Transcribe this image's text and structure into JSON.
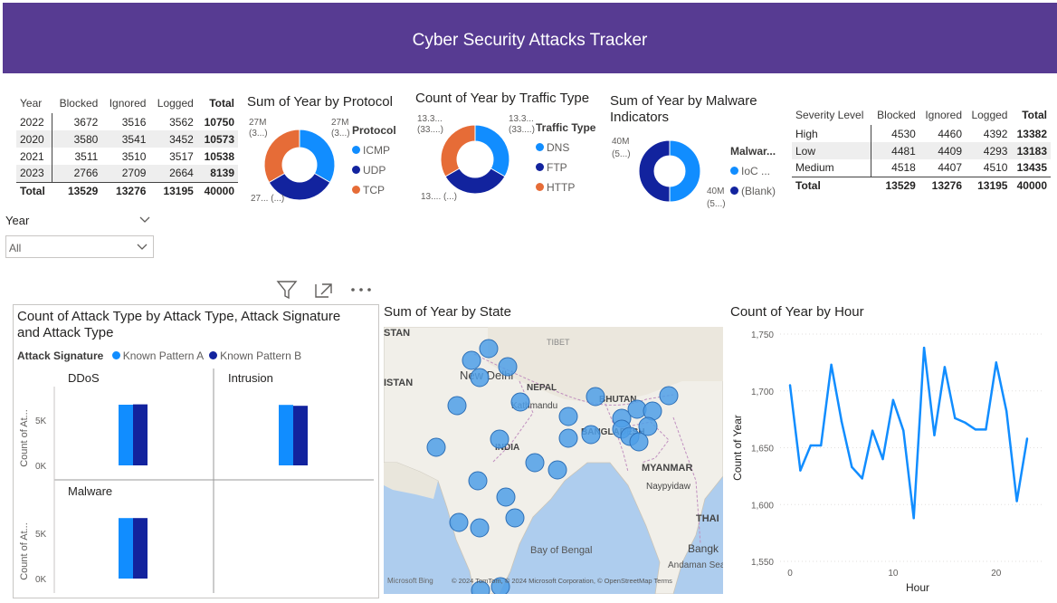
{
  "header": {
    "title": "Cyber Security Attacks Tracker"
  },
  "year_table": {
    "columns": [
      "Year",
      "Blocked",
      "Ignored",
      "Logged",
      "Total"
    ],
    "rows": [
      [
        "2022",
        "3672",
        "3516",
        "3562",
        "10750"
      ],
      [
        "2020",
        "3580",
        "3541",
        "3452",
        "10573"
      ],
      [
        "2021",
        "3511",
        "3510",
        "3517",
        "10538"
      ],
      [
        "2023",
        "2766",
        "2709",
        "2664",
        "8139"
      ]
    ],
    "total": [
      "Total",
      "13529",
      "13276",
      "13195",
      "40000"
    ]
  },
  "severity_table": {
    "columns": [
      "Severity Level",
      "Blocked",
      "Ignored",
      "Logged",
      "Total"
    ],
    "rows": [
      [
        "High",
        "4530",
        "4460",
        "4392",
        "13382"
      ],
      [
        "Low",
        "4481",
        "4409",
        "4293",
        "13183"
      ],
      [
        "Medium",
        "4518",
        "4407",
        "4510",
        "13435"
      ]
    ],
    "total": [
      "Total",
      "13529",
      "13276",
      "13195",
      "40000"
    ]
  },
  "slicer": {
    "label": "Year",
    "value": "All"
  },
  "protocol_donut": {
    "title": "Sum of Year by Protocol",
    "legend_title": "Protocol",
    "labels": {
      "top_left": "27M\n(3...)",
      "top_right": "27M\n(3...)",
      "bottom": "27... (...)"
    },
    "items": [
      {
        "name": "ICMP",
        "color": "#118dff"
      },
      {
        "name": "UDP",
        "color": "#12239e"
      },
      {
        "name": "TCP",
        "color": "#e66c37"
      }
    ]
  },
  "traffic_donut": {
    "title": "Count of Year by Traffic Type",
    "legend_title": "Traffic Type",
    "labels": {
      "top_left": "13.3...\n(33....)",
      "top_right": "13.3...\n(33....)",
      "bottom": "13.... (...)"
    },
    "items": [
      {
        "name": "DNS",
        "color": "#118dff"
      },
      {
        "name": "FTP",
        "color": "#12239e"
      },
      {
        "name": "HTTP",
        "color": "#e66c37"
      }
    ]
  },
  "malware_donut": {
    "title": "Sum of Year by Malware Indicators",
    "legend_title": "Malwar...",
    "labels": {
      "left": "40M\n(5...)",
      "right": "40M\n(5...)"
    },
    "items": [
      {
        "name": "IoC ...",
        "color": "#118dff"
      },
      {
        "name": "(Blank)",
        "color": "#12239e"
      }
    ]
  },
  "attack_chart": {
    "title": "Count of Attack Type by Attack Type, Attack Signature and Attack Type",
    "legend_title": "Attack Signature",
    "legend": [
      {
        "name": "Known Pattern A",
        "color": "#118dff"
      },
      {
        "name": "Known Pattern B",
        "color": "#12239e"
      }
    ],
    "y_axis_label": "Count of At...",
    "panels": [
      "DDoS",
      "Intrusion",
      "Malware"
    ],
    "ticks": [
      "5K",
      "0K"
    ]
  },
  "map": {
    "title": "Sum of Year by State",
    "labels": [
      "STAN",
      "TIBET",
      "New Delhi",
      "NEPAL",
      "Kathmandu",
      "BHUTAN",
      "ISTAN",
      "INDIA",
      "BANGLADESH",
      "MYANMAR",
      "Naypyidaw",
      "THAI",
      "Bay of Bengal",
      "Bangk",
      "Andaman Sea"
    ],
    "attribution": "© 2024 TomTom, © 2024 Microsoft Corporation, © OpenStreetMap  Terms",
    "bing": "Microsoft Bing"
  },
  "hour_chart": {
    "title": "Count of Year by Hour",
    "xlabel": "Hour",
    "ylabel": "Count of Year"
  },
  "toolbar": {
    "filter_icon": "filter-icon",
    "focus_icon": "focus-mode-icon",
    "more_icon": "more-options-icon"
  },
  "chart_data": [
    {
      "type": "line",
      "title": "Count of Year by Hour",
      "xlabel": "Hour",
      "ylabel": "Count of Year",
      "x": [
        0,
        1,
        2,
        3,
        4,
        5,
        6,
        7,
        8,
        9,
        10,
        11,
        12,
        13,
        14,
        15,
        16,
        17,
        18,
        19,
        20,
        21,
        22,
        23
      ],
      "y": [
        1705,
        1630,
        1652,
        1652,
        1723,
        1673,
        1633,
        1623,
        1665,
        1640,
        1692,
        1665,
        1588,
        1738,
        1661,
        1721,
        1676,
        1672,
        1666,
        1666,
        1725,
        1682,
        1603,
        1658
      ],
      "xlim": [
        0,
        23
      ],
      "ylim": [
        1550,
        1750
      ],
      "yticks": [
        1550,
        1600,
        1650,
        1700,
        1750
      ],
      "xticks": [
        0,
        10,
        20
      ],
      "color": "#118dff"
    },
    {
      "type": "bar",
      "title": "Count of Attack Type by Attack Type, Attack Signature and Attack Type",
      "categories": [
        "DDoS",
        "Intrusion",
        "Malware"
      ],
      "series": [
        {
          "name": "Known Pattern A",
          "values": [
            6700,
            6680,
            6680
          ]
        },
        {
          "name": "Known Pattern B",
          "values": [
            6740,
            6580,
            6680
          ]
        }
      ],
      "ylim": [
        0,
        8500
      ]
    },
    {
      "type": "pie",
      "title": "Sum of Year by Protocol",
      "categories": [
        "ICMP",
        "UDP",
        "TCP"
      ],
      "values": [
        33.3,
        33.3,
        33.3
      ]
    },
    {
      "type": "pie",
      "title": "Count of Year by Traffic Type",
      "categories": [
        "DNS",
        "FTP",
        "HTTP"
      ],
      "values": [
        33.3,
        33.3,
        33.3
      ]
    },
    {
      "type": "pie",
      "title": "Sum of Year by Malware Indicators",
      "categories": [
        "IoC ...",
        "(Blank)"
      ],
      "values": [
        50,
        50
      ]
    }
  ]
}
